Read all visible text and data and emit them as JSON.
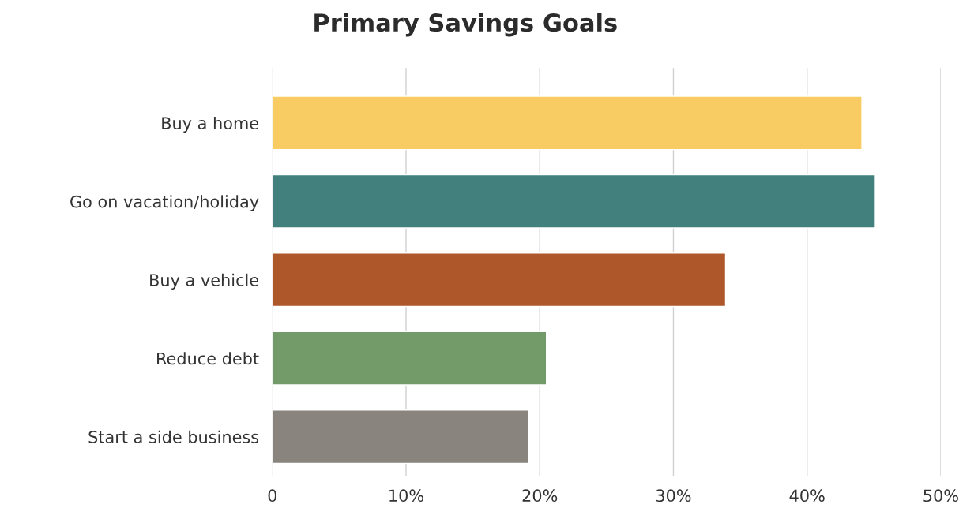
{
  "chart_data": {
    "type": "bar",
    "orientation": "horizontal",
    "title": "Primary Savings Goals",
    "categories": [
      "Buy a home",
      "Go on vacation/holiday",
      "Buy a vehicle",
      "Reduce debt",
      "Start a side business"
    ],
    "values": [
      44.1,
      45.1,
      33.9,
      20.5,
      19.2
    ],
    "colors": [
      "#f9cb63",
      "#41807c",
      "#ad572b",
      "#739b6a",
      "#89857e"
    ],
    "xlim": [
      0,
      50
    ],
    "xticks": [
      0,
      {
        "value": 10,
        "label": "10%"
      },
      {
        "value": 20,
        "label": "20%"
      },
      {
        "value": 30,
        "label": "30%"
      },
      {
        "value": 40,
        "label": "40%"
      },
      {
        "value": 50,
        "label": "50%"
      }
    ],
    "grid": "x",
    "legend": false
  }
}
